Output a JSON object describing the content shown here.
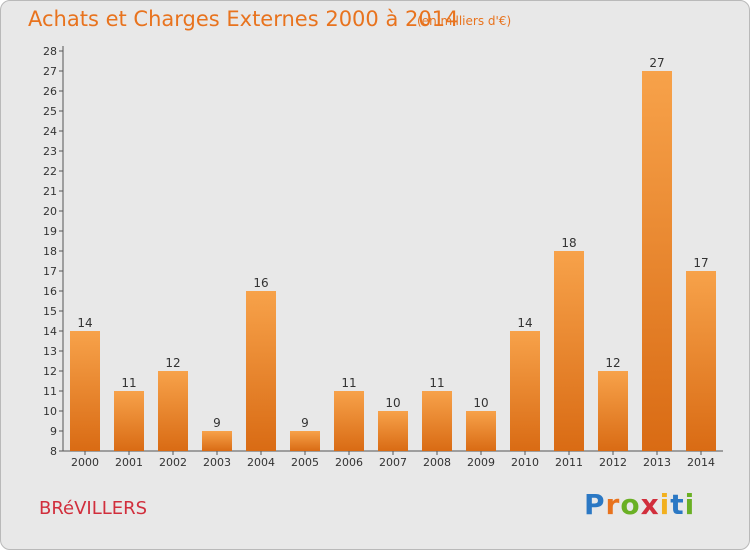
{
  "header": {
    "title": "Achats et Charges Externes 2000 à 2014",
    "subtitle": "(en milliers d'€)"
  },
  "footer": {
    "city": "BRéVILLERS",
    "brand_letters": [
      {
        "ch": "P",
        "color": "#2b78c4"
      },
      {
        "ch": "r",
        "color": "#e8731e"
      },
      {
        "ch": "o",
        "color": "#6ab024"
      },
      {
        "ch": "x",
        "color": "#d12e3c"
      },
      {
        "ch": "i",
        "color": "#f2b01e"
      },
      {
        "ch": "t",
        "color": "#2b78c4"
      },
      {
        "ch": "i",
        "color": "#6ab024"
      }
    ]
  },
  "colors": {
    "title": "#e8731e",
    "city": "#d12e3c",
    "bar_light": "#f7a24a",
    "bar_dark": "#d96b14",
    "background": "#e8e8e8"
  },
  "chart_data": {
    "type": "bar",
    "categories": [
      "2000",
      "2001",
      "2002",
      "2003",
      "2004",
      "2005",
      "2006",
      "2007",
      "2008",
      "2009",
      "2010",
      "2011",
      "2012",
      "2013",
      "2014"
    ],
    "values": [
      14,
      11,
      12,
      9,
      16,
      9,
      11,
      10,
      11,
      10,
      14,
      18,
      12,
      27,
      17
    ],
    "ylim": [
      8,
      28
    ],
    "yticks": [
      8,
      9,
      10,
      11,
      12,
      13,
      14,
      15,
      16,
      17,
      18,
      19,
      20,
      21,
      22,
      23,
      24,
      25,
      26,
      27,
      28
    ],
    "grid": false,
    "data_labels": true
  }
}
